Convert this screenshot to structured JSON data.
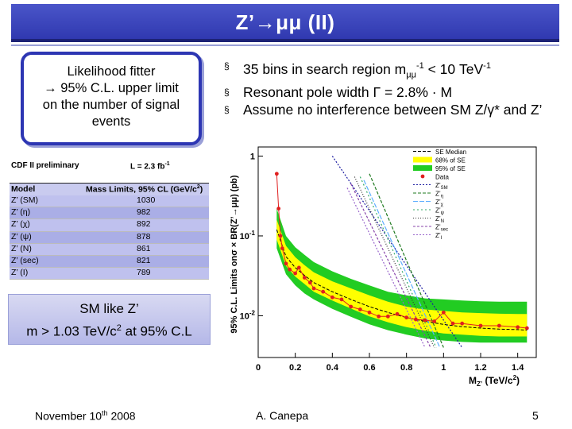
{
  "header": {
    "title": "Z’→μμ (II)"
  },
  "fitter": {
    "line1": "Likelihood fitter",
    "line2": "→ 95% C.L. upper limit",
    "line3": "on the number of signal",
    "line4": "events"
  },
  "bullets": [
    {
      "marker": "§",
      "prefix": "35 bins in search region m",
      "sub": "μμ",
      "sup": "-1",
      "mid": " < 10 TeV",
      "sup2": "-1",
      "suffix": ""
    },
    {
      "marker": "§",
      "text": "Resonant pole width Γ = 2.8% · M"
    },
    {
      "marker": "§",
      "text": "Assume no interference between SM Z/γ* and Z’"
    }
  ],
  "limits_table": {
    "label": "CDF II preliminary",
    "lumi": "L = 2.3 fb",
    "lumi_sup": "-1",
    "col_model": "Model",
    "col_limit": "Mass Limits, 95% CL (GeV/c",
    "col_limit_sup": "2",
    "col_limit_end": ")",
    "rows": [
      {
        "model": "Z’ (SM)",
        "value": "1030"
      },
      {
        "model": "Z’ (η)",
        "value": "982"
      },
      {
        "model": "Z’ (χ)",
        "value": "892"
      },
      {
        "model": "Z’ (ψ)",
        "value": "878"
      },
      {
        "model": "Z’ (N)",
        "value": "861"
      },
      {
        "model": "Z’ (sec)",
        "value": "821"
      },
      {
        "model": "Z’ (I)",
        "value": "789"
      }
    ]
  },
  "sm_box": {
    "line1": "SM like Z’",
    "line2_pre": "m > 1.03 TeV/c",
    "line2_sup": "2",
    "line2_post": " at 95% C.L"
  },
  "footer": {
    "date_pre": "November 10",
    "date_sup": "th",
    "date_post": " 2008",
    "author": "A. Canepa",
    "page": "5"
  },
  "colors": {
    "title_bg": "#3039b0",
    "box_border": "#2d36b3",
    "band95": "#22cc22",
    "band68": "#ffff00",
    "data": "#e02020"
  },
  "chart_data": {
    "type": "line",
    "xlabel": "M",
    "xlabel_sub": "Z’",
    "xlabel_units": "(TeV/c",
    "xlabel_sup": "2",
    "xlabel_end": ")",
    "ylabel": "95% C.L. Limits onσ × BR(Z’→μμ) (pb)",
    "log_y": true,
    "xlim": [
      0.0,
      1.5
    ],
    "ylim": [
      0.003,
      1.3
    ],
    "x_ticks": [
      {
        "value": 0,
        "label": "0"
      },
      {
        "value": 0.2,
        "label": "0.2"
      },
      {
        "value": 0.4,
        "label": "0.4"
      },
      {
        "value": 0.6,
        "label": "0.6"
      },
      {
        "value": 0.8,
        "label": "0.8"
      },
      {
        "value": 1.0,
        "label": "1"
      },
      {
        "value": 1.2,
        "label": "1.2"
      },
      {
        "value": 1.4,
        "label": "1.4"
      }
    ],
    "y_ticks": [
      {
        "value": 1,
        "label": "1"
      },
      {
        "value": 0.1,
        "label": "10",
        "sup": "-1"
      },
      {
        "value": 0.01,
        "label": "10",
        "sup": "-2"
      }
    ],
    "legend": {
      "placement": "top-right",
      "entries": [
        {
          "label": "SE Median"
        },
        {
          "label": "68% of SE"
        },
        {
          "label": "95% of SE"
        },
        {
          "label": "Data"
        },
        {
          "label": "Z’",
          "sub": "SM"
        },
        {
          "label": "Z’",
          "sub": "η"
        },
        {
          "label": "Z’",
          "sub": "χ"
        },
        {
          "label": "Z’",
          "sub": "ψ"
        },
        {
          "label": "Z’",
          "sub": "N"
        },
        {
          "label": "Z’",
          "sub": "sec"
        },
        {
          "label": "Z’",
          "sub": "I"
        }
      ]
    },
    "expected_median": {
      "x": [
        0.1,
        0.15,
        0.2,
        0.25,
        0.3,
        0.4,
        0.5,
        0.6,
        0.7,
        0.8,
        0.9,
        1.0,
        1.1,
        1.2,
        1.3,
        1.4,
        1.45
      ],
      "y": [
        0.12,
        0.055,
        0.04,
        0.032,
        0.026,
        0.02,
        0.016,
        0.013,
        0.011,
        0.0095,
        0.0085,
        0.0078,
        0.0073,
        0.007,
        0.0068,
        0.0067,
        0.0066
      ]
    },
    "band68": {
      "lo": [
        0.09,
        0.042,
        0.031,
        0.025,
        0.02,
        0.0155,
        0.0123,
        0.0098,
        0.0083,
        0.0072,
        0.0065,
        0.006,
        0.0058,
        0.0056,
        0.0055,
        0.0055,
        0.0055
      ],
      "hi": [
        0.16,
        0.075,
        0.054,
        0.043,
        0.035,
        0.027,
        0.022,
        0.018,
        0.015,
        0.013,
        0.012,
        0.0115,
        0.011,
        0.0108,
        0.0106,
        0.0105,
        0.0105
      ]
    },
    "band95": {
      "lo": [
        0.07,
        0.033,
        0.024,
        0.019,
        0.016,
        0.0122,
        0.0097,
        0.0078,
        0.0066,
        0.0058,
        0.0052,
        0.0049,
        0.0047,
        0.0046,
        0.0046,
        0.0046,
        0.0046
      ],
      "hi": [
        0.22,
        0.1,
        0.072,
        0.058,
        0.047,
        0.036,
        0.029,
        0.024,
        0.02,
        0.018,
        0.0165,
        0.016,
        0.0155,
        0.0152,
        0.015,
        0.015,
        0.015
      ]
    },
    "data": {
      "x": [
        0.1,
        0.11,
        0.12,
        0.13,
        0.15,
        0.17,
        0.2,
        0.22,
        0.25,
        0.28,
        0.3,
        0.35,
        0.4,
        0.45,
        0.5,
        0.55,
        0.6,
        0.65,
        0.7,
        0.75,
        0.8,
        0.85,
        0.9,
        0.95,
        1.0,
        1.05,
        1.1,
        1.2,
        1.3,
        1.4,
        1.45
      ],
      "y": [
        0.6,
        0.22,
        0.1,
        0.07,
        0.045,
        0.038,
        0.034,
        0.04,
        0.03,
        0.026,
        0.022,
        0.02,
        0.017,
        0.016,
        0.013,
        0.012,
        0.011,
        0.0098,
        0.0098,
        0.0105,
        0.0095,
        0.009,
        0.0088,
        0.0085,
        0.011,
        0.008,
        0.008,
        0.0075,
        0.0075,
        0.0072,
        0.007
      ]
    },
    "models": [
      {
        "name": "Z’ SM",
        "x": [
          0.4,
          1.1
        ],
        "y": [
          1.0,
          0.004
        ],
        "color": "#1a1aa0",
        "dash": "2,2"
      },
      {
        "name": "Z’ η",
        "x": [
          0.6,
          1.0
        ],
        "y": [
          0.6,
          0.004
        ],
        "color": "#1f7a1f",
        "dash": "4,2"
      },
      {
        "name": "Z’ χ",
        "x": [
          0.57,
          0.98
        ],
        "y": [
          0.5,
          0.004
        ],
        "color": "#5fb0ff",
        "dash": "6,2"
      },
      {
        "name": "Z’ ψ",
        "x": [
          0.55,
          0.96
        ],
        "y": [
          0.55,
          0.004
        ],
        "color": "#33aa66",
        "dash": "2,3"
      },
      {
        "name": "Z’ N",
        "x": [
          0.52,
          0.95
        ],
        "y": [
          0.55,
          0.004
        ],
        "color": "#333333",
        "dash": "1,2"
      },
      {
        "name": "Z’ sec",
        "x": [
          0.5,
          0.93
        ],
        "y": [
          0.45,
          0.004
        ],
        "color": "#8844aa",
        "dash": "3,2"
      },
      {
        "name": "Z’ I",
        "x": [
          0.48,
          0.9
        ],
        "y": [
          0.4,
          0.004
        ],
        "color": "#9966cc",
        "dash": "2,2"
      }
    ]
  }
}
